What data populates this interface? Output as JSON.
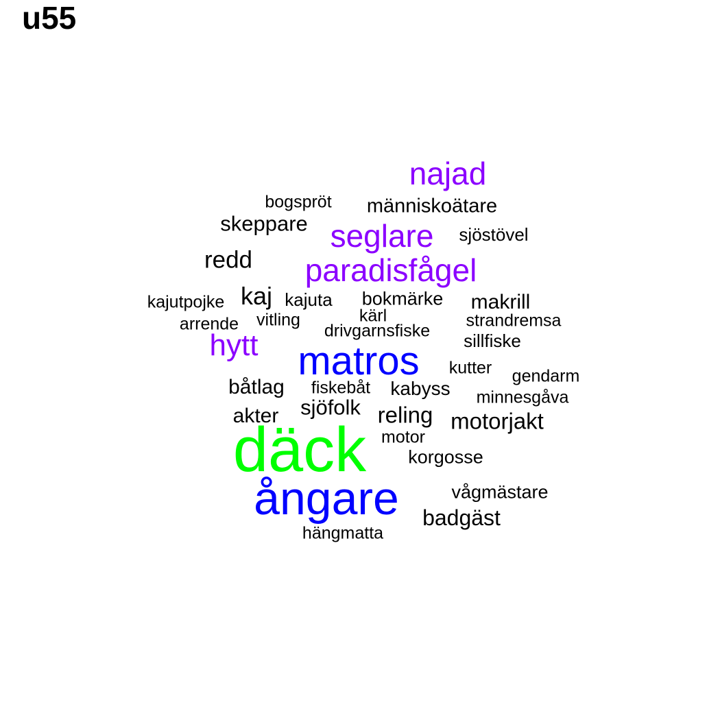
{
  "title": "u55",
  "colors": {
    "tier1": "#00ff00",
    "tier2": "#0000ff",
    "tier3": "#8b00ff",
    "tier4": "#000000"
  },
  "words": [
    {
      "text": "däck",
      "tier": 1
    },
    {
      "text": "ångare",
      "tier": 2
    },
    {
      "text": "matros",
      "tier": 2
    },
    {
      "text": "najad",
      "tier": 3
    },
    {
      "text": "seglare",
      "tier": 3
    },
    {
      "text": "paradisfågel",
      "tier": 3
    },
    {
      "text": "hytt",
      "tier": 3
    },
    {
      "text": "människoätare",
      "tier": 4
    },
    {
      "text": "bogspröt",
      "tier": 4
    },
    {
      "text": "skeppare",
      "tier": 4
    },
    {
      "text": "sjöstövel",
      "tier": 4
    },
    {
      "text": "redd",
      "tier": 4
    },
    {
      "text": "kaj",
      "tier": 4
    },
    {
      "text": "kajutpojke",
      "tier": 4
    },
    {
      "text": "kajuta",
      "tier": 4
    },
    {
      "text": "bokmärke",
      "tier": 4
    },
    {
      "text": "makrill",
      "tier": 4
    },
    {
      "text": "kärl",
      "tier": 4
    },
    {
      "text": "arrende",
      "tier": 4
    },
    {
      "text": "vitling",
      "tier": 4
    },
    {
      "text": "strandremsa",
      "tier": 4
    },
    {
      "text": "drivgarnsfiske",
      "tier": 4
    },
    {
      "text": "sillfiske",
      "tier": 4
    },
    {
      "text": "kutter",
      "tier": 4
    },
    {
      "text": "gendarm",
      "tier": 4
    },
    {
      "text": "båtlag",
      "tier": 4
    },
    {
      "text": "fiskebåt",
      "tier": 4
    },
    {
      "text": "kabyss",
      "tier": 4
    },
    {
      "text": "minnesgåva",
      "tier": 4
    },
    {
      "text": "sjöfolk",
      "tier": 4
    },
    {
      "text": "akter",
      "tier": 4
    },
    {
      "text": "reling",
      "tier": 4
    },
    {
      "text": "motorjakt",
      "tier": 4
    },
    {
      "text": "motor",
      "tier": 4
    },
    {
      "text": "korgosse",
      "tier": 4
    },
    {
      "text": "vågmästare",
      "tier": 4
    },
    {
      "text": "badgäst",
      "tier": 4
    },
    {
      "text": "hängmatta",
      "tier": 4
    }
  ]
}
